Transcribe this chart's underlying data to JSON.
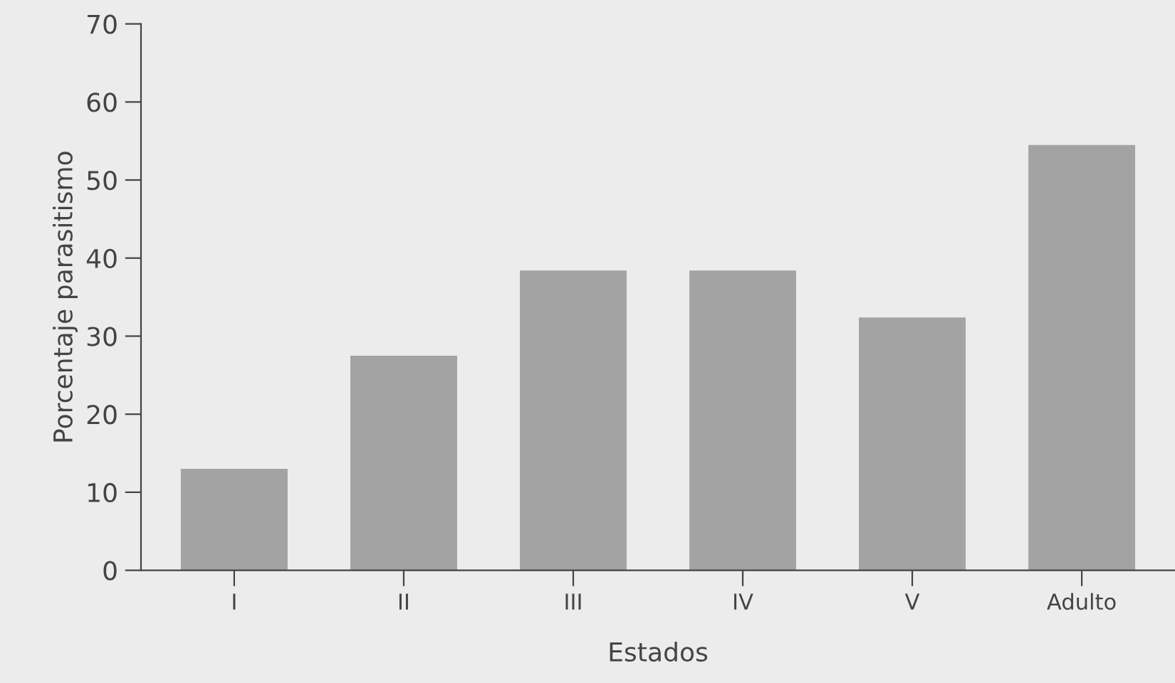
{
  "chart_data": {
    "type": "bar",
    "xlabel": "Estados",
    "ylabel": "Porcentaje parasitismo",
    "categories": [
      "I",
      "II",
      "III",
      "IV",
      "V",
      "Adulto"
    ],
    "values": [
      13,
      27.5,
      38.4,
      38.4,
      32.4,
      54.5
    ],
    "color": "#a3a3a3",
    "ylim": [
      0,
      70
    ],
    "yticks": [
      0,
      10,
      20,
      30,
      40,
      50,
      60,
      70
    ],
    "grid": false
  }
}
